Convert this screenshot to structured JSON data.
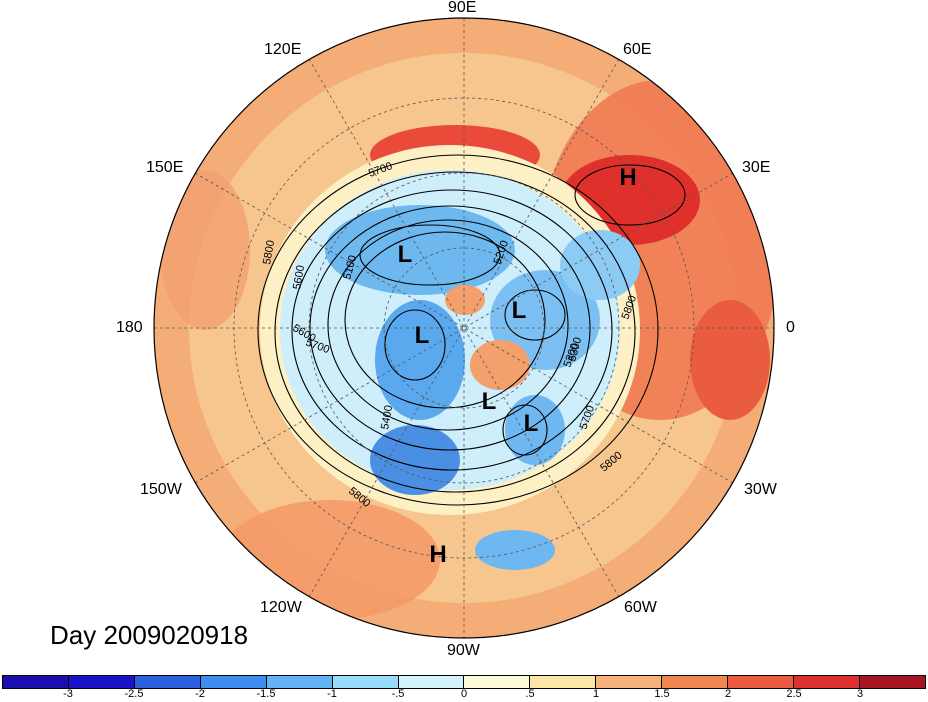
{
  "map": {
    "day_label": "Day 2009020918",
    "longitude_labels": [
      {
        "id": "lon-90e",
        "text": "90E"
      },
      {
        "id": "lon-60e",
        "text": "60E"
      },
      {
        "id": "lon-120e",
        "text": "120E"
      },
      {
        "id": "lon-30e",
        "text": "30E"
      },
      {
        "id": "lon-150e",
        "text": "150E"
      },
      {
        "id": "lon-0",
        "text": "0"
      },
      {
        "id": "lon-180",
        "text": "180"
      },
      {
        "id": "lon-30w",
        "text": "30W"
      },
      {
        "id": "lon-150w",
        "text": "150W"
      },
      {
        "id": "lon-60w",
        "text": "60W"
      },
      {
        "id": "lon-120w",
        "text": "120W"
      },
      {
        "id": "lon-90w",
        "text": "90W"
      }
    ],
    "pressure_markers": [
      "L",
      "L",
      "L",
      "L",
      "L",
      "H",
      "H"
    ],
    "contour_labels": [
      "5700",
      "5800",
      "5600",
      "5100",
      "5200",
      "5300",
      "5400",
      "5600",
      "5700",
      "5800",
      "5800",
      "5700",
      "5800",
      "5300"
    ]
  },
  "colorbar": {
    "colors": [
      "#1a12c8",
      "#2b5fe0",
      "#3d8ef0",
      "#62b3f5",
      "#98dcfb",
      "#d2f3fb",
      "#fcf9d6",
      "#fbe6a8",
      "#f7b27a",
      "#f2864f",
      "#ed5a3d",
      "#df2f2f",
      "#a8141f"
    ],
    "tick_labels": [
      "-3",
      "-2.5",
      "-2",
      "-1.5",
      "-1",
      "-.5",
      "0",
      ".5",
      "1",
      "1.5",
      "2",
      "2.5",
      "3"
    ]
  }
}
